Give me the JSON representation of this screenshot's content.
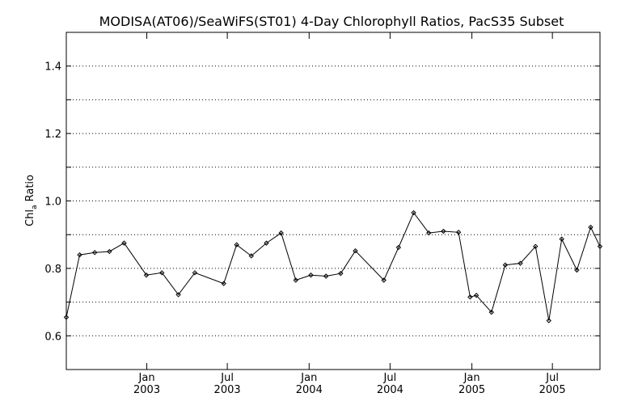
{
  "chart_data": {
    "type": "line",
    "title": "MODISA(AT06)/SeaWiFS(ST01) 4-Day Chlorophyll Ratios, PacS35 Subset",
    "ylabel_main": "Chl",
    "ylabel_sub": "a",
    "ylabel_rest": " Ratio",
    "ylim": [
      0.5,
      1.5
    ],
    "y_ticks": [
      0.6,
      0.8,
      1.0,
      1.2,
      1.4
    ],
    "y_tick_labels": [
      "0.6",
      "0.8",
      "1.0",
      "1.2",
      "1.4"
    ],
    "y_grid": [
      0.6,
      0.7,
      0.8,
      0.9,
      1.0,
      1.1,
      1.2,
      1.3,
      1.4
    ],
    "grid": true,
    "xlim": [
      "2002-07-04",
      "2005-10-16"
    ],
    "x_ticks": [
      {
        "date": "2003-01-01",
        "month": "Jan",
        "year": "2003"
      },
      {
        "date": "2003-07-01",
        "month": "Jul",
        "year": "2003"
      },
      {
        "date": "2004-01-01",
        "month": "Jan",
        "year": "2004"
      },
      {
        "date": "2004-07-01",
        "month": "Jul",
        "year": "2004"
      },
      {
        "date": "2005-01-01",
        "month": "Jan",
        "year": "2005"
      },
      {
        "date": "2005-07-01",
        "month": "Jul",
        "year": "2005"
      }
    ],
    "series": [
      {
        "color": "#000000",
        "points": [
          {
            "x": "2002-07-04",
            "y": 0.655
          },
          {
            "x": "2002-08-03",
            "y": 0.84
          },
          {
            "x": "2002-09-06",
            "y": 0.847
          },
          {
            "x": "2002-10-09",
            "y": 0.85
          },
          {
            "x": "2002-11-11",
            "y": 0.875
          },
          {
            "x": "2002-12-31",
            "y": 0.78
          },
          {
            "x": "2003-02-04",
            "y": 0.787
          },
          {
            "x": "2003-03-13",
            "y": 0.722
          },
          {
            "x": "2003-04-19",
            "y": 0.787
          },
          {
            "x": "2003-06-23",
            "y": 0.755
          },
          {
            "x": "2003-07-22",
            "y": 0.87
          },
          {
            "x": "2003-08-24",
            "y": 0.837
          },
          {
            "x": "2003-09-27",
            "y": 0.875
          },
          {
            "x": "2003-10-30",
            "y": 0.905
          },
          {
            "x": "2003-12-02",
            "y": 0.765
          },
          {
            "x": "2004-01-05",
            "y": 0.78
          },
          {
            "x": "2004-02-08",
            "y": 0.777
          },
          {
            "x": "2004-03-12",
            "y": 0.785
          },
          {
            "x": "2004-04-14",
            "y": 0.852
          },
          {
            "x": "2004-06-17",
            "y": 0.765
          },
          {
            "x": "2004-07-20",
            "y": 0.862
          },
          {
            "x": "2004-08-23",
            "y": 0.965
          },
          {
            "x": "2004-09-26",
            "y": 0.905
          },
          {
            "x": "2004-10-29",
            "y": 0.91
          },
          {
            "x": "2004-12-02",
            "y": 0.907
          },
          {
            "x": "2004-12-28",
            "y": 0.715
          },
          {
            "x": "2005-01-11",
            "y": 0.72
          },
          {
            "x": "2005-02-14",
            "y": 0.67
          },
          {
            "x": "2005-03-17",
            "y": 0.81
          },
          {
            "x": "2005-04-20",
            "y": 0.815
          },
          {
            "x": "2005-05-24",
            "y": 0.865
          },
          {
            "x": "2005-06-23",
            "y": 0.645
          },
          {
            "x": "2005-07-22",
            "y": 0.887
          },
          {
            "x": "2005-08-25",
            "y": 0.795
          },
          {
            "x": "2005-09-25",
            "y": 0.922
          },
          {
            "x": "2005-10-16",
            "y": 0.865
          }
        ]
      }
    ]
  }
}
